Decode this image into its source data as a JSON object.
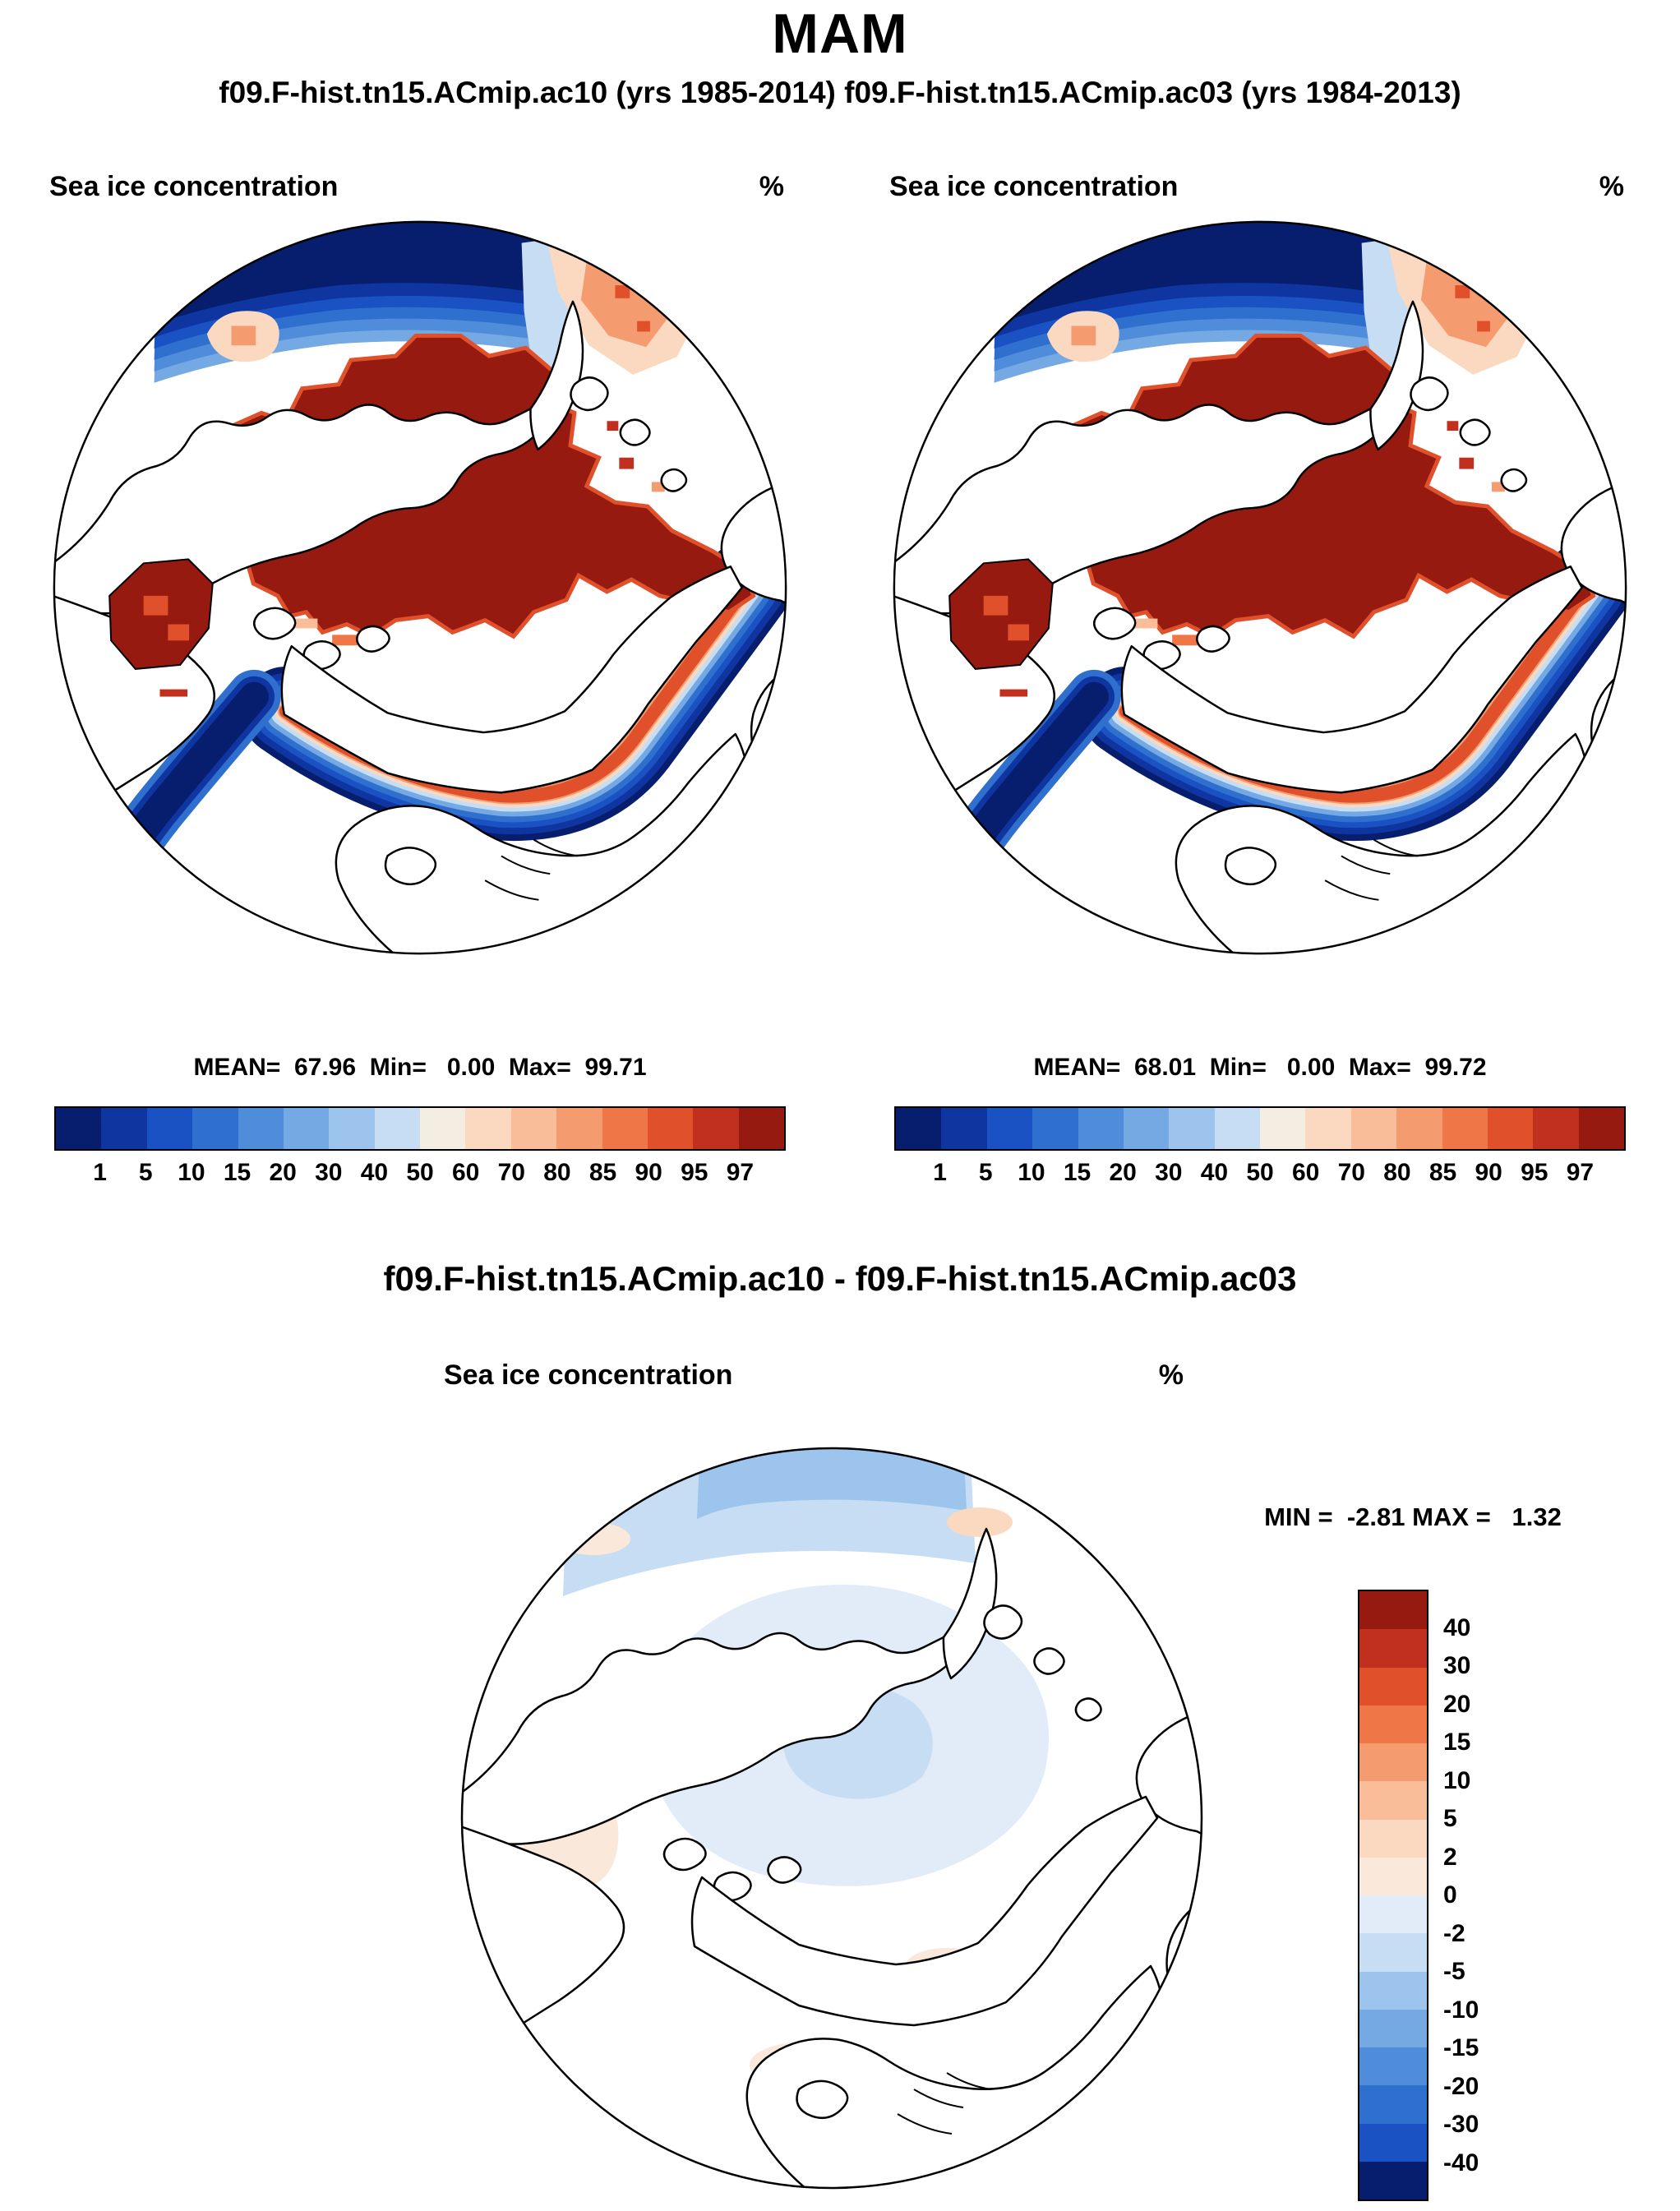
{
  "page_title": "MAM",
  "subtitle": "f09.F-hist.tn15.ACmip.ac10 (yrs 1985-2014) f09.F-hist.tn15.ACmip.ac03 (yrs 1984-2013)",
  "panels": {
    "left": {
      "field": "Sea ice concentration",
      "units": "%",
      "stats": "MEAN=  67.96  Min=   0.00  Max=  99.71"
    },
    "right": {
      "field": "Sea ice concentration",
      "units": "%",
      "stats": "MEAN=  68.01  Min=   0.00  Max=  99.72"
    },
    "diff": {
      "title": "f09.F-hist.tn15.ACmip.ac10 - f09.F-hist.tn15.ACmip.ac03",
      "field": "Sea ice concentration",
      "units": "%",
      "stats": "MIN =  -2.81 MAX =   1.32"
    }
  },
  "colorbar": {
    "tick_labels": [
      "1",
      "5",
      "10",
      "15",
      "20",
      "30",
      "40",
      "50",
      "60",
      "70",
      "80",
      "85",
      "90",
      "95",
      "97"
    ],
    "colors": [
      "#071e6e",
      "#0f35a0",
      "#1b52c3",
      "#2f70cf",
      "#4f8dda",
      "#74a9e3",
      "#9cc4ec",
      "#c6ddf4",
      "#f4ede1",
      "#fbd9c0",
      "#f9bd9a",
      "#f59b70",
      "#ef7747",
      "#e0512b",
      "#c1301e",
      "#961a10"
    ]
  },
  "diff_colorbar": {
    "tick_labels": [
      "40",
      "30",
      "20",
      "15",
      "10",
      "5",
      "2",
      "0",
      "-2",
      "-5",
      "-10",
      "-15",
      "-20",
      "-30",
      "-40"
    ],
    "colors": [
      "#961a10",
      "#c1301e",
      "#e0512b",
      "#ef7747",
      "#f59b70",
      "#f9bd9a",
      "#fbd9c0",
      "#fae8da",
      "#e2ecf8",
      "#c6ddf4",
      "#9cc4ec",
      "#74a9e3",
      "#4f8dda",
      "#2f70cf",
      "#1b52c3",
      "#071e6e"
    ]
  },
  "chart_data": [
    {
      "type": "heatmap",
      "subtype": "north_polar_stereographic_map",
      "season": "MAM",
      "title": "f09.F-hist.tn15.ACmip.ac10 (yrs 1985-2014)",
      "variable": "Sea ice concentration",
      "units": "%",
      "levels": [
        1,
        5,
        10,
        15,
        20,
        30,
        40,
        50,
        60,
        70,
        80,
        85,
        90,
        95,
        97
      ],
      "stats": {
        "mean": 67.96,
        "min": 0.0,
        "max": 99.71
      },
      "legend_position": "bottom"
    },
    {
      "type": "heatmap",
      "subtype": "north_polar_stereographic_map",
      "season": "MAM",
      "title": "f09.F-hist.tn15.ACmip.ac03 (yrs 1984-2013)",
      "variable": "Sea ice concentration",
      "units": "%",
      "levels": [
        1,
        5,
        10,
        15,
        20,
        30,
        40,
        50,
        60,
        70,
        80,
        85,
        90,
        95,
        97
      ],
      "stats": {
        "mean": 68.01,
        "min": 0.0,
        "max": 99.72
      },
      "legend_position": "bottom"
    },
    {
      "type": "heatmap",
      "subtype": "north_polar_stereographic_map_difference",
      "season": "MAM",
      "title": "f09.F-hist.tn15.ACmip.ac10 - f09.F-hist.tn15.ACmip.ac03",
      "variable": "Sea ice concentration",
      "units": "%",
      "levels": [
        -40,
        -30,
        -20,
        -15,
        -10,
        -5,
        -2,
        0,
        2,
        5,
        10,
        15,
        20,
        30,
        40
      ],
      "stats": {
        "min": -2.81,
        "max": 1.32
      },
      "legend_position": "right"
    }
  ]
}
